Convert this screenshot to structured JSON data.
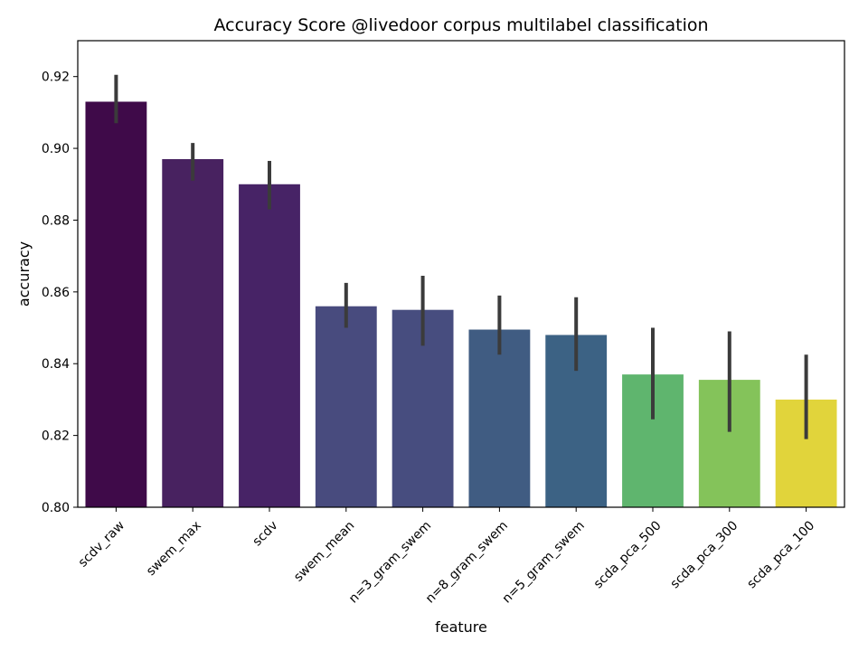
{
  "chart_data": {
    "type": "bar",
    "title": "Accuracy Score @livedoor corpus multilabel classification",
    "xlabel": "feature",
    "ylabel": "accuracy",
    "ylim": [
      0.8,
      0.93
    ],
    "yticks": [
      0.8,
      0.82,
      0.84,
      0.86,
      0.88,
      0.9,
      0.92
    ],
    "ytick_labels": [
      "0.80",
      "0.82",
      "0.84",
      "0.86",
      "0.88",
      "0.90",
      "0.92"
    ],
    "categories": [
      "scdv_raw",
      "swem_max",
      "scdv",
      "swem_mean",
      "n=3_gram_swem",
      "n=8_gram_swem",
      "n=5_gram_swem",
      "scda_pca_500",
      "scda_pca_300",
      "scda_pca_100"
    ],
    "values": [
      0.913,
      0.897,
      0.89,
      0.856,
      0.855,
      0.8495,
      0.848,
      0.837,
      0.8355,
      0.83
    ],
    "error_low": [
      0.907,
      0.891,
      0.883,
      0.85,
      0.845,
      0.8425,
      0.838,
      0.8245,
      0.821,
      0.819
    ],
    "error_high": [
      0.9205,
      0.9015,
      0.8965,
      0.8625,
      0.8645,
      0.859,
      0.8585,
      0.85,
      0.849,
      0.8425
    ],
    "colors": [
      "#3f0a49",
      "#482260",
      "#472366",
      "#484b7e",
      "#474d7f",
      "#405c82",
      "#3c6284",
      "#5fb56e",
      "#84c35a",
      "#e1d43b"
    ],
    "error_color": "#3b3b3b",
    "grid": false,
    "legend": "none"
  }
}
